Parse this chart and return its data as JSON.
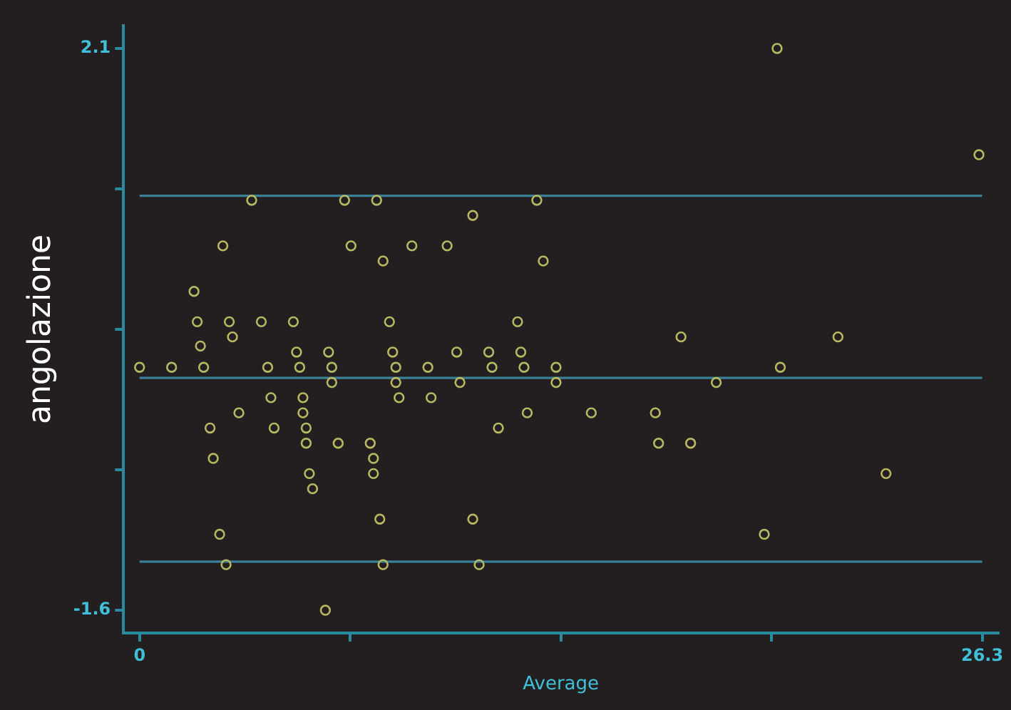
{
  "chart_data": {
    "type": "scatter",
    "xlabel": "Average",
    "ylabel": "angolazione",
    "marker": "circle",
    "grid": false,
    "xlim": [
      -0.5,
      26.8
    ],
    "ylim": [
      -1.75,
      2.25
    ],
    "xticks": [
      0,
      {
        "value": 6.575,
        "label": null
      },
      {
        "value": 13.15,
        "label": null
      },
      {
        "value": 19.725,
        "label": null
      },
      26.3
    ],
    "yticks": [
      -1.6,
      {
        "value": -0.675,
        "label": null
      },
      {
        "value": 0.25,
        "label": null
      },
      {
        "value": 1.175,
        "label": null
      },
      2.1
    ],
    "ref_lines": [
      {
        "axis": "y",
        "value": 1.13,
        "color": "#3a8096"
      },
      {
        "axis": "y",
        "value": -0.07,
        "color": "#3a8096"
      },
      {
        "axis": "y",
        "value": -1.28,
        "color": "#3a8096"
      }
    ],
    "series": [
      {
        "color": "#b8b862",
        "x": [
          3.5,
          6.4,
          7.4,
          12.4,
          10.4,
          2.6,
          6.6,
          8.5,
          9.6,
          7.6,
          12.6,
          1.7,
          1.8,
          2.8,
          3.8,
          4.8,
          7.8,
          11.8,
          2.9,
          1.9,
          4.9,
          5.9,
          7.9,
          9.9,
          10.9,
          11.9,
          0,
          1.0,
          2.0,
          4.0,
          5.0,
          6.0,
          8.0,
          9.0,
          11.0,
          12.0,
          13.0,
          6.0,
          8.0,
          10.0,
          13.0,
          4.1,
          5.1,
          8.1,
          9.1,
          3.1,
          5.1,
          12.1,
          2.2,
          4.2,
          5.2,
          11.2,
          5.2,
          6.2,
          7.2,
          2.3,
          7.3,
          5.3,
          7.3,
          5.4,
          7.5,
          10.4,
          2.5,
          2.7,
          7.6,
          10.6,
          5.8,
          19.9,
          26.2,
          16.9,
          21.8,
          20.0,
          18.0,
          14.1,
          16.1,
          16.2,
          17.2,
          23.3,
          19.5
        ],
        "values": [
          1.1,
          1.1,
          1.1,
          1.1,
          1.0,
          0.8,
          0.8,
          0.8,
          0.8,
          0.7,
          0.7,
          0.5,
          0.3,
          0.3,
          0.3,
          0.3,
          0.3,
          0.3,
          0.2,
          0.14,
          0.1,
          0.1,
          0.1,
          0.1,
          0.1,
          0.1,
          0.0,
          0.0,
          0.0,
          0.0,
          0.0,
          0.0,
          0.0,
          0.0,
          0.0,
          0.0,
          0.0,
          -0.1,
          -0.1,
          -0.1,
          -0.1,
          -0.2,
          -0.2,
          -0.2,
          -0.2,
          -0.3,
          -0.3,
          -0.3,
          -0.4,
          -0.4,
          -0.4,
          -0.4,
          -0.5,
          -0.5,
          -0.5,
          -0.6,
          -0.6,
          -0.7,
          -0.7,
          -0.8,
          -1.0,
          -1.0,
          -1.1,
          -1.3,
          -1.3,
          -1.3,
          -1.6,
          2.1,
          1.4,
          0.2,
          0.2,
          0.0,
          -0.1,
          -0.3,
          -0.3,
          -0.5,
          -0.5,
          -0.7,
          -1.1
        ]
      }
    ]
  }
}
